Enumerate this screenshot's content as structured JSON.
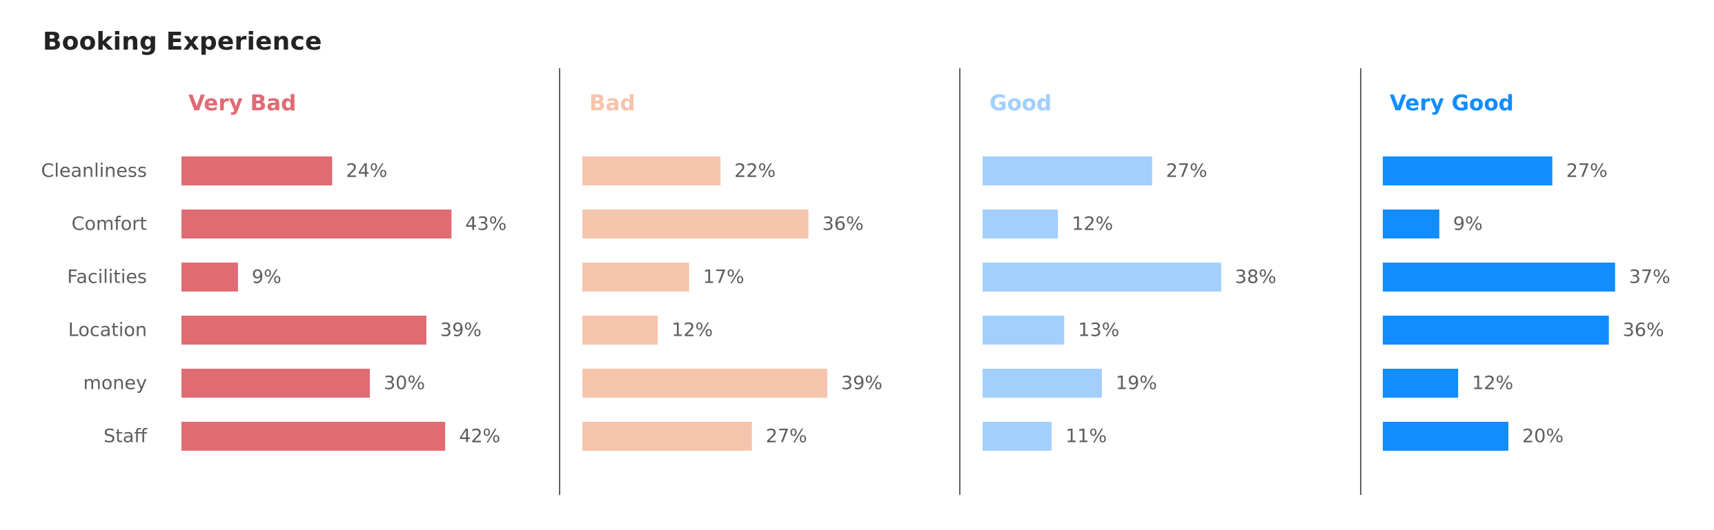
{
  "title": "Booking Experience",
  "chart_data": {
    "type": "bar",
    "orientation": "horizontal",
    "layout": "small-multiples",
    "title": "Booking Experience",
    "categories": [
      "Cleanliness",
      "Comfort",
      "Facilities",
      "Location",
      "money",
      "Staff"
    ],
    "value_format": "percent",
    "xlim": [
      0,
      45
    ],
    "grid": false,
    "legend": "none",
    "series": [
      {
        "name": "Very Bad",
        "color": "#e06b73",
        "values": [
          24,
          43,
          9,
          39,
          30,
          42
        ]
      },
      {
        "name": "Bad",
        "color": "#f5c4ad",
        "values": [
          22,
          36,
          17,
          12,
          39,
          27
        ]
      },
      {
        "name": "Good",
        "color": "#a3cffc",
        "values": [
          27,
          12,
          38,
          13,
          19,
          11
        ]
      },
      {
        "name": "Very Good",
        "color": "#118dff",
        "values": [
          27,
          9,
          37,
          36,
          12,
          20
        ]
      }
    ],
    "divider_color": "#605e5c",
    "text_color": "#605e5c"
  }
}
